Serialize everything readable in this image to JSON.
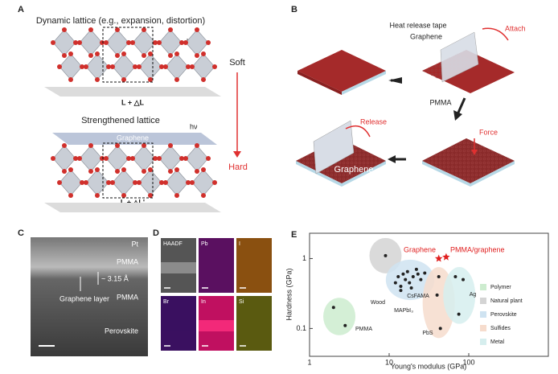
{
  "panel_a": {
    "label": "A",
    "top_title": "Dynamic lattice (e.g., expansion, distortion)",
    "top_photon": "hν",
    "top_length": "L + △L",
    "soft": "Soft",
    "bottom_title": "Strengthened lattice",
    "graphene": "Graphene",
    "bottom_photon": "hν",
    "bottom_length": "L + △L'",
    "hard": "Hard"
  },
  "panel_b": {
    "label": "B",
    "tape": "Heat release tape",
    "graphene": "Graphene",
    "attach": "Attach",
    "pmma": "PMMA",
    "force": "Force",
    "release": "Release",
    "graphene_result": "Graphene"
  },
  "panel_c": {
    "label": "C",
    "labels": [
      "Pt",
      "PMMA",
      "~ 3.15 Å",
      "Graphene layer",
      "PMMA",
      "Perovskite"
    ]
  },
  "panel_d": {
    "label": "D",
    "maps": [
      "HAADF",
      "Pb",
      "I",
      "Br",
      "In",
      "Si"
    ]
  },
  "chart_data": {
    "type": "scatter",
    "label": "E",
    "x_label": "Young's modulus (GPa)",
    "y_label": "Hardness (GPa)",
    "log_x": true,
    "log_y": true,
    "xlim": [
      1,
      1000
    ],
    "ylim": [
      0.04,
      2.3
    ],
    "xticks": [
      1,
      10,
      100
    ],
    "yticks": [
      0.1,
      1
    ],
    "series": [
      {
        "name": "Polymer",
        "color": "#cdeccf",
        "x": [
          2,
          2.8
        ],
        "values": [
          0.2,
          0.11
        ]
      },
      {
        "name": "Natural plant",
        "color": "#d4d4d4",
        "x": [
          9
        ],
        "values": [
          1.1
        ]
      },
      {
        "name": "Perovskite",
        "color": "#cfe3f1",
        "x": [
          12,
          13,
          14,
          15,
          16,
          17,
          18,
          20,
          22,
          25,
          14,
          19,
          23,
          28
        ],
        "values": [
          0.45,
          0.55,
          0.4,
          0.6,
          0.5,
          0.65,
          0.45,
          0.55,
          0.7,
          0.5,
          0.35,
          0.38,
          0.6,
          0.62
        ]
      },
      {
        "name": "Sulfides",
        "color": "#f6dccd",
        "x": [
          40,
          44,
          42
        ],
        "values": [
          0.3,
          0.1,
          0.55
        ]
      },
      {
        "name": "Metal",
        "color": "#d6eeee",
        "x": [
          68,
          75,
          85
        ],
        "values": [
          0.55,
          0.16,
          0.5
        ]
      }
    ],
    "highlights": {
      "color": "#e02020",
      "x": [
        42,
        52
      ],
      "values": [
        1.0,
        1.05
      ]
    },
    "annotations": [
      "Graphene",
      "PMMA/graphene",
      "Wood",
      "MAPbI₃",
      "CsFAMA",
      "Ag",
      "PbS",
      "PMMA"
    ]
  }
}
